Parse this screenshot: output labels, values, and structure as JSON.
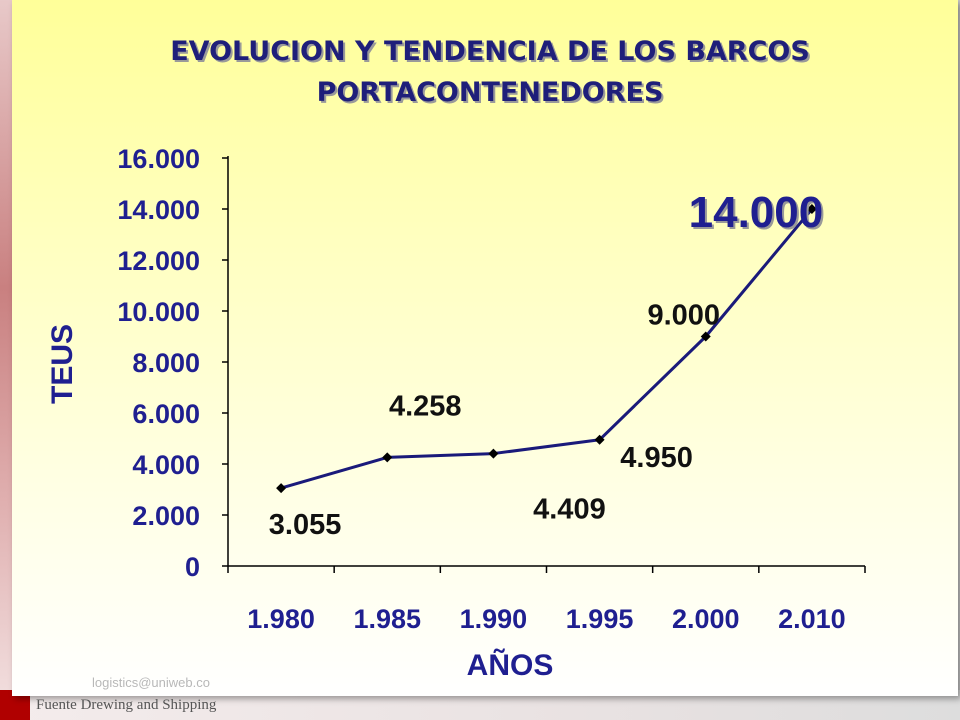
{
  "chart_data": {
    "type": "line",
    "title_lines": [
      "EVOLUCION Y TENDENCIA DE LOS BARCOS",
      "PORTACONTENEDORES"
    ],
    "xlabel": "AÑOS",
    "ylabel": "TEUS",
    "categories": [
      "1.980",
      "1.985",
      "1.990",
      "1.995",
      "2.000",
      "2.010"
    ],
    "yticks": [
      "0",
      "2.000",
      "4.000",
      "6.000",
      "8.000",
      "10.000",
      "12.000",
      "14.000",
      "16.000"
    ],
    "ylim": [
      0,
      16000
    ],
    "series": [
      {
        "values": [
          3055,
          4258,
          4409,
          4950,
          9000,
          14000
        ]
      }
    ],
    "data_labels": [
      "3.055",
      "4.258",
      "4.409",
      "4.950",
      "9.000",
      "14.000"
    ],
    "line_color": "#1a1a7a",
    "marker_color": "#000000",
    "grid": false
  },
  "footer": {
    "email": "logistics@uniweb.co",
    "source": "Fuente Drewing and Shipping"
  }
}
